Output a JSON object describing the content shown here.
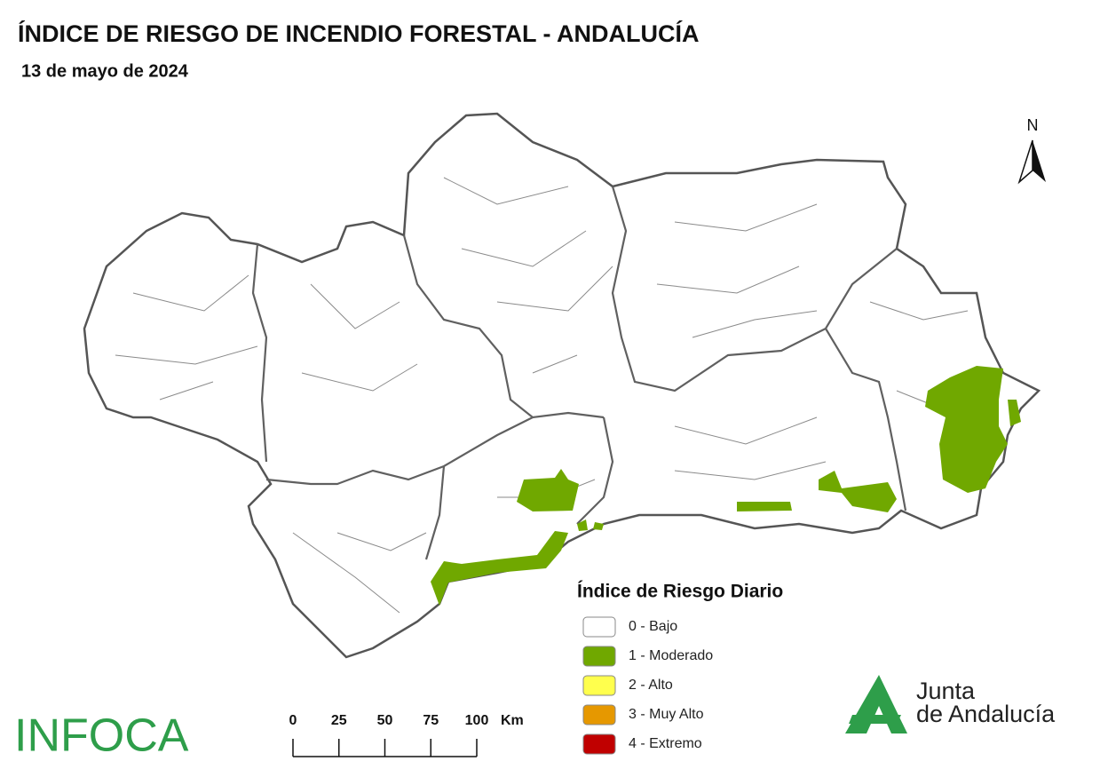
{
  "header": {
    "title": "ÍNDICE DE RIESGO DE INCENDIO FORESTAL - ANDALUCÍA",
    "date": "13 de mayo de 2024"
  },
  "north_label": "N",
  "legend": {
    "title": "Índice de Riesgo Diario",
    "items": [
      {
        "label": "0 - Bajo",
        "color": "#ffffff"
      },
      {
        "label": "1 - Moderado",
        "color": "#70a800"
      },
      {
        "label": "2 - Alto",
        "color": "#ffff4d"
      },
      {
        "label": "3 - Muy Alto",
        "color": "#e69800"
      },
      {
        "label": "4 - Extremo",
        "color": "#c00000"
      }
    ]
  },
  "scale_bar": {
    "ticks": [
      0,
      25,
      50,
      75,
      100
    ],
    "unit": "Km"
  },
  "logos": {
    "left": "INFOCA",
    "right_line1": "Junta",
    "right_line2": "de Andalucía"
  }
}
